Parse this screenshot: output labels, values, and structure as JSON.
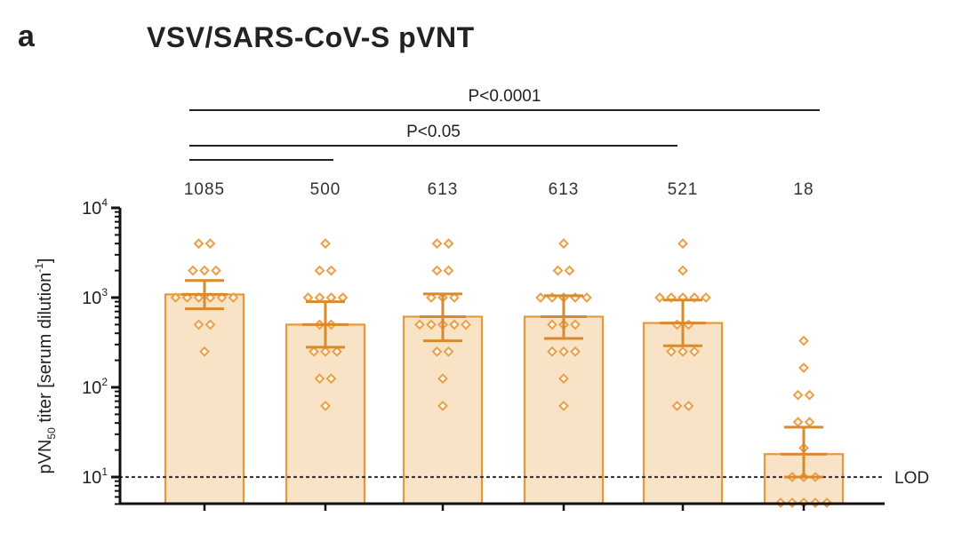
{
  "panel_letter": "a",
  "chart_data": {
    "type": "bar",
    "title": "VSV/SARS-CoV-S pVNT",
    "ylabel": "pVN50 titer [serum dilution-1]",
    "ylabel_parts": {
      "a": "pVN",
      "sub": "50",
      "b": " titer [serum dilution",
      "sup": "-1",
      "c": "]"
    },
    "yscale": "log",
    "ylim": [
      5,
      10000
    ],
    "yticks": [
      {
        "value": 10,
        "base": "10",
        "exp": "1"
      },
      {
        "value": 100,
        "base": "10",
        "exp": "2"
      },
      {
        "value": 1000,
        "base": "10",
        "exp": "3"
      },
      {
        "value": 10000,
        "base": "10",
        "exp": "4"
      }
    ],
    "bar_labels": [
      "1085",
      "500",
      "613",
      "613",
      "521",
      "18"
    ],
    "series": [
      {
        "value": 1085,
        "err_low": 750,
        "err_high": 1550,
        "points": [
          4000,
          4000,
          2000,
          2000,
          2000,
          1000,
          1000,
          1000,
          1000,
          1000,
          1000,
          500,
          500,
          250
        ]
      },
      {
        "value": 500,
        "err_low": 280,
        "err_high": 900,
        "points": [
          4000,
          2000,
          2000,
          1000,
          1000,
          1000,
          1000,
          500,
          500,
          250,
          250,
          250,
          125,
          125,
          62
        ]
      },
      {
        "value": 613,
        "err_low": 330,
        "err_high": 1100,
        "points": [
          4000,
          4000,
          2000,
          2000,
          1000,
          1000,
          1000,
          500,
          500,
          500,
          500,
          500,
          250,
          250,
          125,
          62
        ]
      },
      {
        "value": 613,
        "err_low": 350,
        "err_high": 1050,
        "points": [
          4000,
          2000,
          2000,
          1000,
          1000,
          1000,
          1000,
          1000,
          500,
          500,
          500,
          250,
          250,
          250,
          125,
          62
        ]
      },
      {
        "value": 521,
        "err_low": 290,
        "err_high": 940,
        "points": [
          4000,
          2000,
          1000,
          1000,
          1000,
          1000,
          1000,
          500,
          500,
          250,
          250,
          250,
          62,
          62
        ]
      },
      {
        "value": 18,
        "err_low": 10,
        "err_high": 36,
        "points": [
          330,
          165,
          82,
          82,
          41,
          41,
          21,
          10,
          10,
          10,
          5,
          5,
          5,
          5,
          5
        ]
      }
    ],
    "lod": {
      "value": 10,
      "label": "LOD"
    },
    "significance": [
      {
        "label": "P<0.0001",
        "from": 0,
        "to": 5
      },
      {
        "label": "P<0.05",
        "from": 0,
        "to": 4
      },
      {
        "label": "",
        "from": 0,
        "to": 1
      }
    ],
    "colors": {
      "bar_fill": "#f8e3c6",
      "bar_stroke": "#e49a3c",
      "point": "#e9a04a",
      "error": "#d98a2a"
    }
  }
}
